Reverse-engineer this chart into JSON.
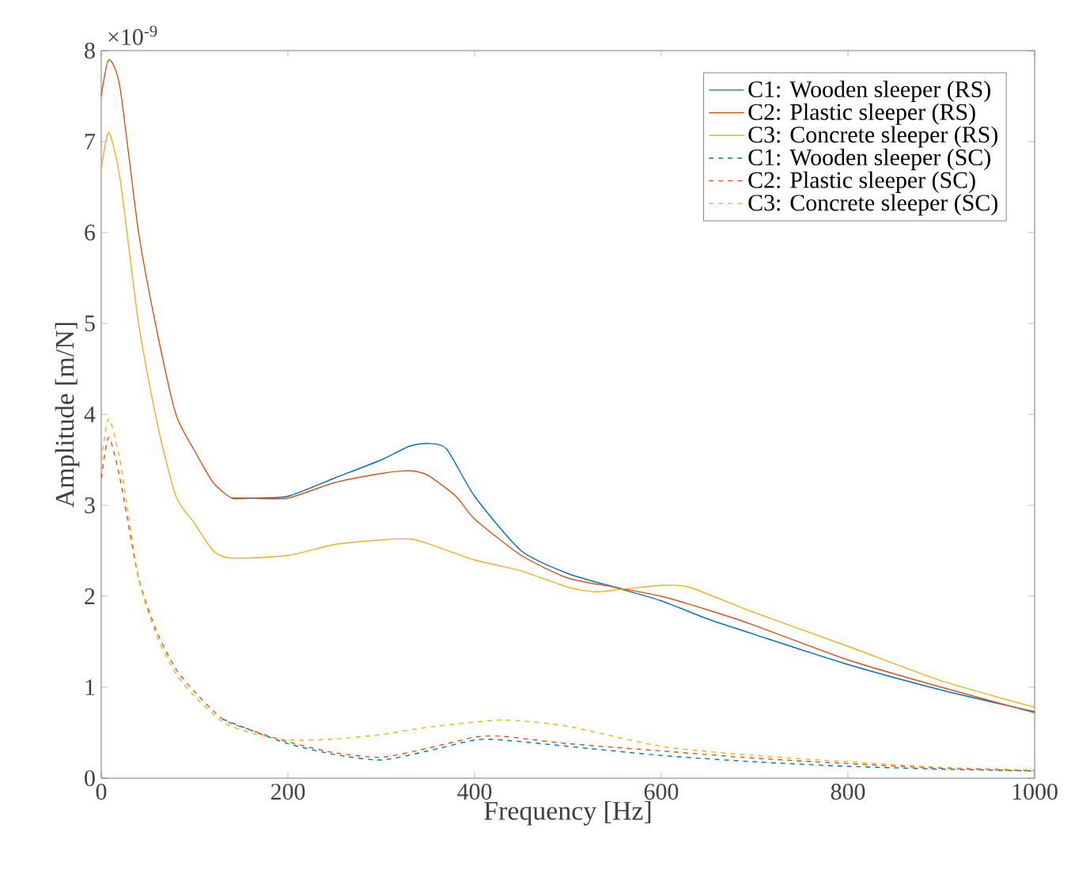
{
  "chart_data": {
    "type": "line",
    "xlabel": "Frequency [Hz]",
    "ylabel": "Amplitude [m/N]",
    "annotations": [
      "×10$^{-9}$"
    ],
    "xlim": [
      0,
      1000
    ],
    "ylim": [
      0,
      8
    ],
    "xticks": [
      0,
      200,
      400,
      600,
      800,
      1000
    ],
    "yticks": [
      0,
      1,
      2,
      3,
      4,
      5,
      6,
      7,
      8
    ],
    "grid": false,
    "legend": "top right",
    "series": [
      {
        "name": "C1: Wooden sleeper (RS)",
        "color": "#0072bd",
        "line_style": "solid",
        "x": [
          140,
          160,
          200,
          250,
          300,
          330,
          350,
          370,
          400,
          450,
          500,
          550,
          600,
          650,
          700,
          800,
          900,
          1000
        ],
        "values": [
          3.08,
          3.08,
          3.1,
          3.3,
          3.5,
          3.65,
          3.68,
          3.62,
          3.1,
          2.5,
          2.25,
          2.1,
          1.95,
          1.75,
          1.58,
          1.25,
          0.97,
          0.73
        ]
      },
      {
        "name": "C2: Plastic sleeper (RS)",
        "color": "#d95319",
        "line_style": "solid",
        "x": [
          0,
          8,
          20,
          40,
          60,
          80,
          100,
          120,
          140,
          160,
          200,
          250,
          300,
          330,
          350,
          380,
          400,
          450,
          500,
          550,
          600,
          650,
          700,
          800,
          900,
          1000
        ],
        "values": [
          7.5,
          7.9,
          7.6,
          6.0,
          4.9,
          4.0,
          3.6,
          3.25,
          3.08,
          3.08,
          3.08,
          3.25,
          3.35,
          3.38,
          3.33,
          3.1,
          2.85,
          2.45,
          2.2,
          2.1,
          2.0,
          1.85,
          1.68,
          1.3,
          1.0,
          0.72
        ]
      },
      {
        "name": "C3: Concrete sleeper (RS)",
        "color": "#edb120",
        "line_style": "solid",
        "x": [
          0,
          8,
          20,
          40,
          60,
          80,
          100,
          120,
          140,
          200,
          250,
          300,
          330,
          350,
          400,
          450,
          500,
          530,
          560,
          600,
          630,
          700,
          800,
          900,
          1000
        ],
        "values": [
          6.7,
          7.1,
          6.6,
          5.0,
          3.9,
          3.1,
          2.8,
          2.5,
          2.42,
          2.45,
          2.57,
          2.62,
          2.63,
          2.58,
          2.4,
          2.28,
          2.1,
          2.05,
          2.08,
          2.12,
          2.1,
          1.82,
          1.45,
          1.07,
          0.78
        ]
      },
      {
        "name": "C1: Wooden sleeper (SC)",
        "color": "#0072bd",
        "line_style": "dashed",
        "x": [
          130,
          160,
          200,
          250,
          300,
          350,
          400,
          430,
          500,
          600,
          700,
          800,
          900,
          1000
        ],
        "values": [
          0.65,
          0.53,
          0.38,
          0.26,
          0.2,
          0.3,
          0.42,
          0.42,
          0.35,
          0.25,
          0.18,
          0.13,
          0.1,
          0.08
        ]
      },
      {
        "name": "C2: Plastic sleeper (SC)",
        "color": "#d95319",
        "line_style": "dashed",
        "x": [
          0,
          8,
          20,
          40,
          60,
          80,
          100,
          130,
          160,
          200,
          250,
          300,
          350,
          400,
          430,
          500,
          600,
          700,
          800,
          900,
          1000
        ],
        "values": [
          3.3,
          3.75,
          3.3,
          2.2,
          1.6,
          1.2,
          0.95,
          0.65,
          0.53,
          0.4,
          0.28,
          0.23,
          0.33,
          0.45,
          0.46,
          0.38,
          0.3,
          0.22,
          0.16,
          0.11,
          0.08
        ]
      },
      {
        "name": "C3: Concrete sleeper (SC)",
        "color": "#edb120",
        "line_style": "dashed",
        "x": [
          0,
          8,
          20,
          40,
          60,
          80,
          100,
          130,
          160,
          200,
          250,
          300,
          350,
          430,
          500,
          600,
          700,
          800,
          900,
          1000
        ],
        "values": [
          3.5,
          3.95,
          3.5,
          2.2,
          1.55,
          1.15,
          0.9,
          0.62,
          0.5,
          0.42,
          0.43,
          0.48,
          0.56,
          0.64,
          0.57,
          0.35,
          0.25,
          0.18,
          0.12,
          0.09
        ]
      }
    ]
  }
}
